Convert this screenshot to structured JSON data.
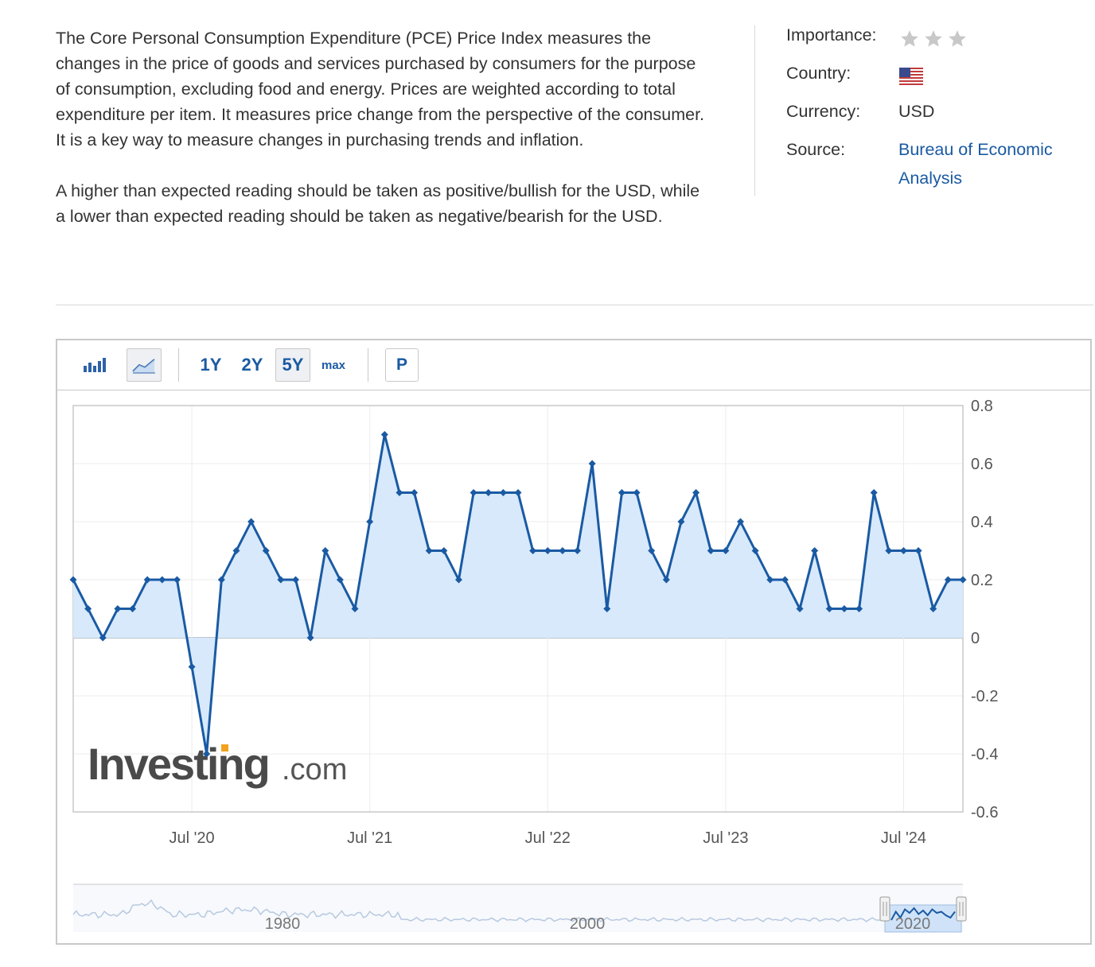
{
  "description": {
    "paragraph_1": "The Core Personal Consumption Expenditure (PCE) Price Index measures the changes in the price of goods and services purchased by consumers for the purpose of consumption, excluding food and energy. Prices are weighted according to total expenditure per item. It measures price change from the perspective of the consumer. It is a key way to measure changes in purchasing trends and inflation.",
    "paragraph_2": "A higher than expected reading should be taken as positive/bullish for the USD, while a lower than expected reading should be taken as negative/bearish for the USD."
  },
  "info": {
    "importance_label": "Importance:",
    "importance_stars": 3,
    "importance_star_color": "#c8c8c8",
    "country_label": "Country:",
    "country_flag_icon": "us-flag-icon",
    "currency_label": "Currency:",
    "currency_value": "USD",
    "source_label": "Source:",
    "source_value": "Bureau of Economic Analysis"
  },
  "toolbar": {
    "bar_chart_icon": "bar-chart-icon",
    "line_chart_icon": "line-chart-icon",
    "range_1y": "1Y",
    "range_2y": "2Y",
    "range_5y": "5Y",
    "range_max": "max",
    "p_label": "P",
    "selected_range": "5Y"
  },
  "watermark": {
    "brand": "Investing",
    "suffix": ".com"
  },
  "colors": {
    "line": "#1a5aa3",
    "area": "#d7e9fb",
    "link": "#1a5aa3"
  },
  "chart_data": {
    "type": "area",
    "x": [
      "Nov '19",
      "Dec '19",
      "Jan '20",
      "Feb '20",
      "Mar '20",
      "Apr '20",
      "May '20",
      "Jun '20",
      "Jul '20",
      "Aug '20",
      "Sep '20",
      "Oct '20",
      "Nov '20",
      "Dec '20",
      "Jan '21",
      "Feb '21",
      "Mar '21",
      "Apr '21",
      "May '21",
      "Jun '21",
      "Jul '21",
      "Aug '21",
      "Sep '21",
      "Oct '21",
      "Nov '21",
      "Dec '21",
      "Jan '22",
      "Feb '22",
      "Mar '22",
      "Apr '22",
      "May '22",
      "Jun '22",
      "Jul '22",
      "Aug '22",
      "Sep '22",
      "Oct '22",
      "Nov '22",
      "Dec '22",
      "Jan '23",
      "Feb '23",
      "Mar '23",
      "Apr '23",
      "May '23",
      "Jun '23",
      "Jul '23",
      "Aug '23",
      "Sep '23",
      "Oct '23",
      "Nov '23",
      "Dec '23",
      "Jan '24",
      "Feb '24",
      "Mar '24",
      "Apr '24",
      "May '24",
      "Jun '24",
      "Jul '24",
      "Aug '24",
      "Sep '24",
      "Oct '24",
      "Nov '24"
    ],
    "series": [
      {
        "values": [
          0.2,
          0.1,
          0.0,
          0.1,
          0.1,
          0.2,
          0.2,
          0.2,
          -0.1,
          -0.4,
          0.2,
          0.3,
          0.4,
          0.3,
          0.2,
          0.2,
          0.0,
          0.3,
          0.2,
          0.1,
          0.4,
          0.7,
          0.5,
          0.5,
          0.3,
          0.3,
          0.2,
          0.5,
          0.5,
          0.5,
          0.5,
          0.3,
          0.3,
          0.3,
          0.3,
          0.6,
          0.1,
          0.5,
          0.5,
          0.3,
          0.2,
          0.4,
          0.5,
          0.3,
          0.3,
          0.4,
          0.3,
          0.2,
          0.2,
          0.1,
          0.3,
          0.1,
          0.1,
          0.1,
          0.5,
          0.3,
          0.3,
          0.3,
          0.1,
          0.2,
          0.2
        ]
      }
    ],
    "x_tick_labels": [
      "Jul '20",
      "Jul '21",
      "Jul '22",
      "Jul '23",
      "Jul '24"
    ],
    "y_tick_labels": [
      "0.8",
      "0.6",
      "0.4",
      "0.2",
      "0",
      "-0.2",
      "-0.4",
      "-0.6"
    ],
    "ylim": [
      -0.6,
      0.8
    ],
    "y_axis_side": "right",
    "grid": true,
    "navigator_labels": [
      "1980",
      "2000",
      "2020"
    ]
  }
}
